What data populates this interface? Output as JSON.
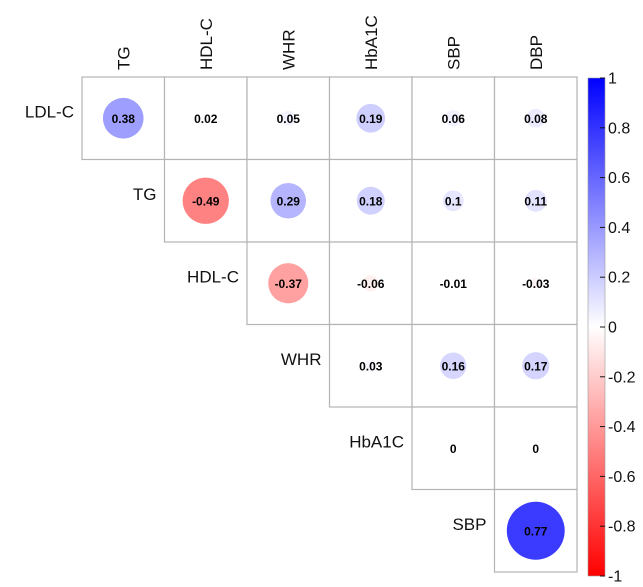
{
  "chart_data": {
    "type": "heatmap",
    "title": "",
    "columns": [
      "TG",
      "HDL-C",
      "WHR",
      "HbA1C",
      "SBP",
      "DBP"
    ],
    "rows": [
      "LDL-C",
      "TG",
      "HDL-C",
      "WHR",
      "HbA1C",
      "SBP"
    ],
    "cells": [
      {
        "row": "LDL-C",
        "col": "TG",
        "value": 0.38,
        "label": "0.38"
      },
      {
        "row": "LDL-C",
        "col": "HDL-C",
        "value": 0.02,
        "label": "0.02"
      },
      {
        "row": "LDL-C",
        "col": "WHR",
        "value": 0.05,
        "label": "0.05"
      },
      {
        "row": "LDL-C",
        "col": "HbA1C",
        "value": 0.19,
        "label": "0.19"
      },
      {
        "row": "LDL-C",
        "col": "SBP",
        "value": 0.06,
        "label": "0.06"
      },
      {
        "row": "LDL-C",
        "col": "DBP",
        "value": 0.08,
        "label": "0.08"
      },
      {
        "row": "TG",
        "col": "HDL-C",
        "value": -0.49,
        "label": "-0.49"
      },
      {
        "row": "TG",
        "col": "WHR",
        "value": 0.29,
        "label": "0.29"
      },
      {
        "row": "TG",
        "col": "HbA1C",
        "value": 0.18,
        "label": "0.18"
      },
      {
        "row": "TG",
        "col": "SBP",
        "value": 0.1,
        "label": "0.1"
      },
      {
        "row": "TG",
        "col": "DBP",
        "value": 0.11,
        "label": "0.11"
      },
      {
        "row": "HDL-C",
        "col": "WHR",
        "value": -0.37,
        "label": "-0.37"
      },
      {
        "row": "HDL-C",
        "col": "HbA1C",
        "value": -0.06,
        "label": "-0.06"
      },
      {
        "row": "HDL-C",
        "col": "SBP",
        "value": -0.01,
        "label": "-0.01"
      },
      {
        "row": "HDL-C",
        "col": "DBP",
        "value": -0.03,
        "label": "-0.03"
      },
      {
        "row": "WHR",
        "col": "HbA1C",
        "value": 0.03,
        "label": "0.03"
      },
      {
        "row": "WHR",
        "col": "SBP",
        "value": 0.16,
        "label": "0.16"
      },
      {
        "row": "WHR",
        "col": "DBP",
        "value": 0.17,
        "label": "0.17"
      },
      {
        "row": "HbA1C",
        "col": "SBP",
        "value": 0,
        "label": "0"
      },
      {
        "row": "HbA1C",
        "col": "DBP",
        "value": 0,
        "label": "0"
      },
      {
        "row": "SBP",
        "col": "DBP",
        "value": 0.77,
        "label": "0.77"
      }
    ],
    "colorbar": {
      "range": [
        -1,
        1
      ],
      "ticks": [
        "1",
        "0.8",
        "0.6",
        "0.4",
        "0.2",
        "0",
        "-0.2",
        "-0.4",
        "-0.6",
        "-0.8",
        "-1"
      ],
      "low_color": "#ff0000",
      "mid_color": "#ffffff",
      "high_color": "#0000ff"
    },
    "grid_color": "#b4b4b4",
    "legend_placement": "right"
  }
}
